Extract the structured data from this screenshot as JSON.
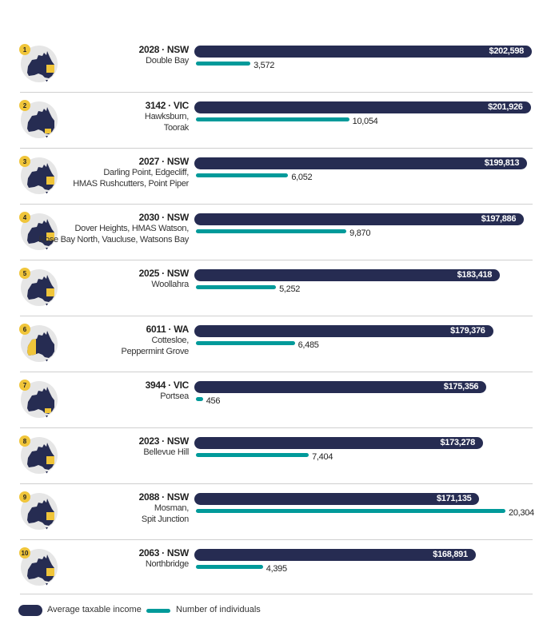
{
  "colors": {
    "income": "#262c52",
    "individuals": "#009a9a",
    "highlight": "#f0c53a",
    "circle": "#e6e6e6"
  },
  "chart_data": {
    "type": "bar",
    "orientation": "horizontal",
    "categories": [
      {
        "rank": "1",
        "code": "2028 · NSW",
        "state": "NSW",
        "suburbs": [
          "Double Bay"
        ]
      },
      {
        "rank": "2",
        "code": "3142 · VIC",
        "state": "VIC",
        "suburbs": [
          "Hawksburn,",
          "Toorak"
        ]
      },
      {
        "rank": "3",
        "code": "2027 · NSW",
        "state": "NSW",
        "suburbs": [
          "Darling Point, Edgecliff,",
          "HMAS Rushcutters, Point Piper"
        ]
      },
      {
        "rank": "4",
        "code": "2030 · NSW",
        "state": "NSW",
        "suburbs": [
          "Dover Heights, HMAS Watson,",
          "Rose Bay North, Vaucluse, Watsons Bay"
        ]
      },
      {
        "rank": "5",
        "code": "2025 · NSW",
        "state": "NSW",
        "suburbs": [
          "Woollahra"
        ]
      },
      {
        "rank": "6",
        "code": "6011 · WA",
        "state": "WA",
        "suburbs": [
          "Cottesloe,",
          "Peppermint Grove"
        ]
      },
      {
        "rank": "7",
        "code": "3944 · VIC",
        "state": "VIC",
        "suburbs": [
          "Portsea"
        ]
      },
      {
        "rank": "8",
        "code": "2023 · NSW",
        "state": "NSW",
        "suburbs": [
          "Bellevue Hill"
        ]
      },
      {
        "rank": "9",
        "code": "2088 · NSW",
        "state": "NSW",
        "suburbs": [
          "Mosman,",
          "Spit Junction"
        ]
      },
      {
        "rank": "10",
        "code": "2063 · NSW",
        "state": "NSW",
        "suburbs": [
          "Northbridge"
        ]
      }
    ],
    "series": [
      {
        "name": "Average taxable income",
        "values": [
          202598,
          201926,
          199813,
          197886,
          183418,
          179376,
          175356,
          173278,
          171135,
          168891
        ],
        "labels": [
          "$202,598",
          "$201,926",
          "$199,813",
          "$197,886",
          "$183,418",
          "$179,376",
          "$175,356",
          "$173,278",
          "$171,135",
          "$168,891"
        ]
      },
      {
        "name": "Number of individuals",
        "values": [
          3572,
          10054,
          6052,
          9870,
          5252,
          6485,
          456,
          7404,
          20304,
          4395
        ],
        "labels": [
          "3,572",
          "10,054",
          "6,052",
          "9,870",
          "5,252",
          "6,485",
          "456",
          "7,404",
          "20,304",
          "4,395"
        ]
      }
    ],
    "legend": "bottom-left"
  }
}
